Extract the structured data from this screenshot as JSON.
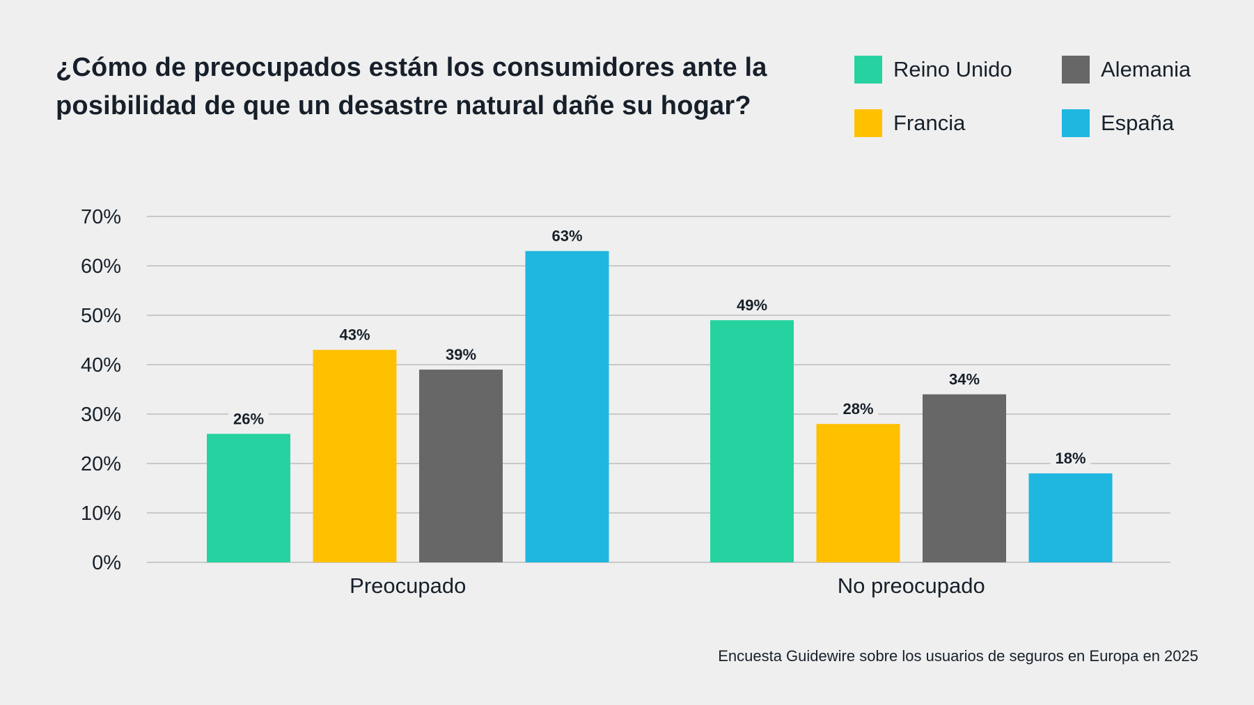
{
  "title": "¿Cómo de preocupados están los consumidores ante la posibilidad de que un desastre natural dañe su hogar?",
  "source": "Encuesta Guidewire sobre los usuarios de seguros en Europa en 2025",
  "legend": [
    {
      "label": "Reino Unido",
      "color": "#26d3a0"
    },
    {
      "label": "Alemania",
      "color": "#676767"
    },
    {
      "label": "Francia",
      "color": "#ffc000"
    },
    {
      "label": "España",
      "color": "#1fb6e0"
    }
  ],
  "chart_data": {
    "type": "bar",
    "title": "¿Cómo de preocupados están los consumidores ante la posibilidad de que un desastre natural dañe su hogar?",
    "xlabel": "",
    "ylabel": "",
    "categories": [
      "Preocupado",
      "No preocupado"
    ],
    "series": [
      {
        "name": "Reino Unido",
        "color": "#26d3a0",
        "values": [
          26,
          49
        ]
      },
      {
        "name": "Francia",
        "color": "#ffc000",
        "values": [
          43,
          28
        ]
      },
      {
        "name": "Alemania",
        "color": "#676767",
        "values": [
          39,
          34
        ]
      },
      {
        "name": "España",
        "color": "#1fb6e0",
        "values": [
          63,
          18
        ]
      }
    ],
    "ylim": [
      0,
      70
    ],
    "yticks": [
      0,
      10,
      20,
      30,
      40,
      50,
      60,
      70
    ],
    "ytick_format": "{v}%",
    "data_label_format": "{v}%",
    "grid": true,
    "legend_position": "top-right",
    "source": "Encuesta Guidewire sobre los usuarios de seguros en Europa en 2025"
  }
}
